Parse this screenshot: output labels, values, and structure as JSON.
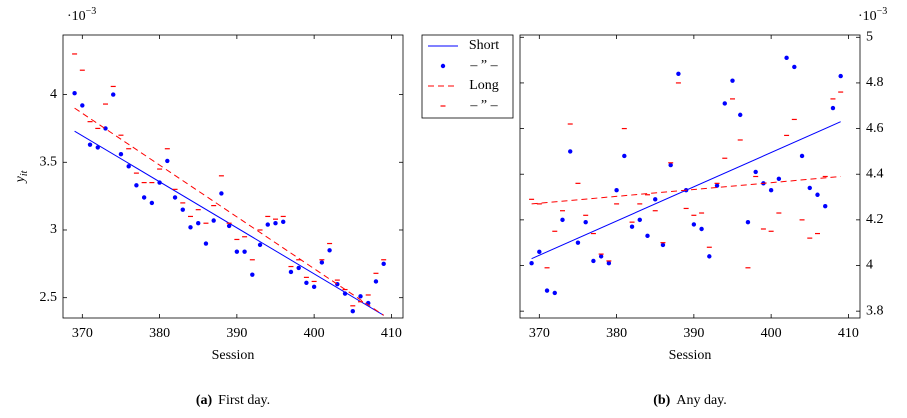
{
  "legend": [
    {
      "name": "Short",
      "color": "#0000ff",
      "style": "line",
      "dash": "solid"
    },
    {
      "name": "– ” –",
      "color": "#0000ff",
      "style": "marker",
      "marker": "dot"
    },
    {
      "name": "Long",
      "color": "#ff0000",
      "style": "line",
      "dash": "dashed"
    },
    {
      "name": "– ” –",
      "color": "#ff0000",
      "style": "marker",
      "marker": "dash"
    }
  ],
  "chart_data": [
    {
      "type": "line",
      "caption_tag": "(a)",
      "caption": "First day.",
      "xlabel": "Session",
      "ylabel": "y",
      "ylabel_subscript": "it",
      "scale_label": {
        "base": "·10",
        "exponent": "−3"
      },
      "yaxis_side": "left",
      "xlim": [
        367.5,
        411.5
      ],
      "xticks": [
        370,
        380,
        390,
        400,
        410
      ],
      "ylim": [
        2.35,
        4.44
      ],
      "yticks": [
        2.5,
        3,
        3.5,
        4
      ],
      "series": [
        {
          "color": "#0000ff",
          "style": "line",
          "dash": "solid",
          "x": [
            369,
            409
          ],
          "values": [
            3.73,
            2.37
          ]
        },
        {
          "color": "#0000ff",
          "style": "marker",
          "marker": "dot",
          "x": [
            369,
            370,
            371,
            372,
            373,
            374,
            375,
            376,
            377,
            378,
            379,
            380,
            381,
            382,
            383,
            384,
            385,
            386,
            387,
            388,
            389,
            390,
            391,
            392,
            393,
            394,
            395,
            396,
            397,
            398,
            399,
            400,
            401,
            402,
            403,
            404,
            405,
            406,
            407,
            408,
            409
          ],
          "values": [
            4.01,
            3.92,
            3.63,
            3.61,
            3.75,
            4.0,
            3.56,
            3.47,
            3.33,
            3.24,
            3.2,
            3.35,
            3.51,
            3.24,
            3.15,
            3.02,
            3.05,
            2.9,
            3.07,
            3.27,
            3.03,
            2.84,
            2.84,
            2.67,
            2.89,
            3.04,
            3.05,
            3.06,
            2.69,
            2.72,
            2.61,
            2.58,
            2.76,
            2.85,
            2.6,
            2.53,
            2.4,
            2.51,
            2.46,
            2.62,
            2.75
          ]
        },
        {
          "color": "#ff0000",
          "style": "line",
          "dash": "dashed",
          "x": [
            369,
            409
          ],
          "values": [
            3.9,
            2.37
          ]
        },
        {
          "color": "#ff0000",
          "style": "marker",
          "marker": "dash",
          "x": [
            369,
            370,
            371,
            372,
            373,
            374,
            375,
            376,
            377,
            378,
            379,
            380,
            381,
            382,
            383,
            384,
            385,
            386,
            387,
            388,
            389,
            390,
            391,
            392,
            393,
            394,
            395,
            396,
            397,
            398,
            399,
            400,
            401,
            402,
            403,
            404,
            405,
            406,
            407,
            408,
            409
          ],
          "values": [
            4.3,
            4.18,
            3.8,
            3.75,
            3.93,
            4.06,
            3.7,
            3.6,
            3.42,
            3.35,
            3.35,
            3.45,
            3.6,
            3.3,
            3.2,
            3.1,
            3.15,
            3.05,
            3.18,
            3.4,
            3.05,
            2.93,
            2.95,
            2.78,
            3.0,
            3.1,
            3.08,
            3.1,
            2.73,
            2.78,
            2.65,
            2.62,
            2.78,
            2.9,
            2.63,
            2.56,
            2.44,
            2.47,
            2.52,
            2.68,
            2.78
          ]
        }
      ]
    },
    {
      "type": "line",
      "caption_tag": "(b)",
      "caption": "Any day.",
      "xlabel": "Session",
      "scale_label": {
        "base": "·10",
        "exponent": "−3"
      },
      "yaxis_side": "right",
      "xlim": [
        367.5,
        411.5
      ],
      "xticks": [
        370,
        380,
        390,
        400,
        410
      ],
      "ylim": [
        3.77,
        5.01
      ],
      "yticks": [
        3.8,
        4,
        4.2,
        4.4,
        4.6,
        4.8,
        5
      ],
      "series": [
        {
          "color": "#0000ff",
          "style": "line",
          "dash": "solid",
          "x": [
            369,
            409
          ],
          "values": [
            4.03,
            4.63
          ]
        },
        {
          "color": "#0000ff",
          "style": "marker",
          "marker": "dot",
          "x": [
            369,
            370,
            371,
            372,
            373,
            374,
            375,
            376,
            377,
            378,
            379,
            380,
            381,
            382,
            383,
            384,
            385,
            386,
            387,
            388,
            389,
            390,
            391,
            392,
            393,
            394,
            395,
            396,
            397,
            398,
            399,
            400,
            401,
            402,
            403,
            404,
            405,
            406,
            407,
            408,
            409
          ],
          "values": [
            4.01,
            4.06,
            3.89,
            3.88,
            4.2,
            4.5,
            4.1,
            4.19,
            4.02,
            4.04,
            4.01,
            4.33,
            4.48,
            4.17,
            4.2,
            4.13,
            4.29,
            4.09,
            4.44,
            4.84,
            4.33,
            4.18,
            4.16,
            4.04,
            4.35,
            4.71,
            4.81,
            4.66,
            4.19,
            4.41,
            4.36,
            4.33,
            4.38,
            4.91,
            4.87,
            4.48,
            4.34,
            4.31,
            4.26,
            4.69,
            4.83
          ]
        },
        {
          "color": "#ff0000",
          "style": "line",
          "dash": "dashed",
          "x": [
            369,
            409
          ],
          "values": [
            4.27,
            4.39
          ]
        },
        {
          "color": "#ff0000",
          "style": "marker",
          "marker": "dash",
          "x": [
            369,
            370,
            371,
            372,
            373,
            374,
            375,
            376,
            377,
            378,
            379,
            380,
            381,
            382,
            383,
            384,
            385,
            386,
            387,
            388,
            389,
            390,
            391,
            392,
            393,
            394,
            395,
            396,
            397,
            398,
            399,
            400,
            401,
            402,
            403,
            404,
            405,
            406,
            407,
            408,
            409
          ],
          "values": [
            4.29,
            4.27,
            3.99,
            4.15,
            4.24,
            4.62,
            4.36,
            4.22,
            4.14,
            4.05,
            4.02,
            4.27,
            4.6,
            4.19,
            4.27,
            4.31,
            4.24,
            4.1,
            4.45,
            4.8,
            4.25,
            4.22,
            4.23,
            4.08,
            4.36,
            4.47,
            4.73,
            4.55,
            3.99,
            4.39,
            4.16,
            4.15,
            4.23,
            4.57,
            4.64,
            4.2,
            4.12,
            4.14,
            4.39,
            4.73,
            4.76
          ]
        }
      ]
    }
  ]
}
